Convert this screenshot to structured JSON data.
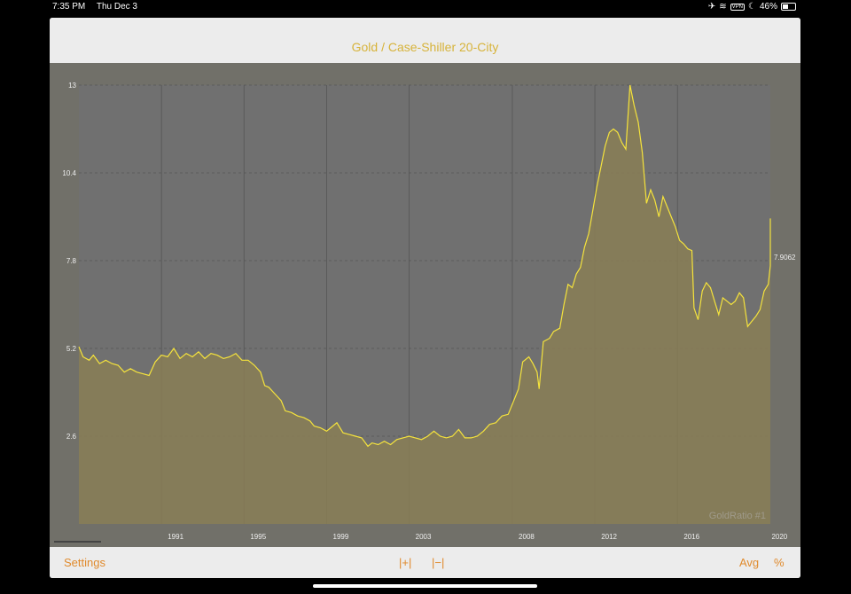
{
  "status": {
    "time": "7:35 PM",
    "date": "Thu Dec 3",
    "vpn": "VPN",
    "battery": "46%",
    "battery_level": 0.46
  },
  "title": "Gold / Case-Shiller 20-City",
  "watermark": "GoldRatio #1",
  "bottom": {
    "settings": "Settings",
    "zoom_in": "|+|",
    "zoom_out": "|−|",
    "avg": "Avg",
    "pct": "%"
  },
  "colors": {
    "line": "#f5e33c",
    "fill": "#887e55",
    "plot_bg": "#707070",
    "accent": "#e08a2c",
    "title": "#d7b33a"
  },
  "chart_data": {
    "type": "area",
    "title": "Gold / Case-Shiller 20-City",
    "xlim": [
      1987.0,
      2020.5
    ],
    "ylim": [
      0,
      13
    ],
    "y_ticks": [
      2.6,
      5.2,
      7.8,
      10.4,
      13
    ],
    "y_tick_labels": [
      "2.6",
      "5.2",
      "7.8",
      "10.4",
      "13"
    ],
    "x_tick_labels": [
      "1991",
      "1995",
      "1999",
      "2003",
      "2008",
      "2012",
      "2016",
      "2020"
    ],
    "x_ticks": [
      1991,
      1995,
      1999,
      2003,
      2008,
      2012,
      2016,
      2020
    ],
    "grid": true,
    "current_value_label": "7.9062",
    "series": [
      {
        "values": [
          [
            1987.0,
            5.25
          ],
          [
            1987.2,
            4.95
          ],
          [
            1987.5,
            4.85
          ],
          [
            1987.7,
            5.0
          ],
          [
            1988.0,
            4.75
          ],
          [
            1988.3,
            4.85
          ],
          [
            1988.6,
            4.75
          ],
          [
            1988.9,
            4.7
          ],
          [
            1989.2,
            4.5
          ],
          [
            1989.5,
            4.6
          ],
          [
            1989.8,
            4.5
          ],
          [
            1990.1,
            4.45
          ],
          [
            1990.4,
            4.4
          ],
          [
            1990.7,
            4.8
          ],
          [
            1991.0,
            5.0
          ],
          [
            1991.3,
            4.95
          ],
          [
            1991.6,
            5.2
          ],
          [
            1991.9,
            4.9
          ],
          [
            1992.2,
            5.05
          ],
          [
            1992.5,
            4.95
          ],
          [
            1992.8,
            5.1
          ],
          [
            1993.1,
            4.9
          ],
          [
            1993.4,
            5.05
          ],
          [
            1993.7,
            5.0
          ],
          [
            1994.0,
            4.9
          ],
          [
            1994.3,
            4.95
          ],
          [
            1994.6,
            5.05
          ],
          [
            1994.9,
            4.85
          ],
          [
            1995.2,
            4.85
          ],
          [
            1995.5,
            4.7
          ],
          [
            1995.8,
            4.5
          ],
          [
            1996.0,
            4.1
          ],
          [
            1996.2,
            4.05
          ],
          [
            1996.5,
            3.85
          ],
          [
            1996.8,
            3.65
          ],
          [
            1997.0,
            3.35
          ],
          [
            1997.3,
            3.3
          ],
          [
            1997.6,
            3.2
          ],
          [
            1997.9,
            3.15
          ],
          [
            1998.2,
            3.05
          ],
          [
            1998.4,
            2.9
          ],
          [
            1998.7,
            2.85
          ],
          [
            1999.0,
            2.75
          ],
          [
            1999.2,
            2.85
          ],
          [
            1999.5,
            3.0
          ],
          [
            1999.8,
            2.7
          ],
          [
            2000.1,
            2.65
          ],
          [
            2000.4,
            2.6
          ],
          [
            2000.7,
            2.55
          ],
          [
            2001.0,
            2.3
          ],
          [
            2001.2,
            2.4
          ],
          [
            2001.5,
            2.35
          ],
          [
            2001.8,
            2.45
          ],
          [
            2002.1,
            2.35
          ],
          [
            2002.4,
            2.5
          ],
          [
            2002.7,
            2.55
          ],
          [
            2003.0,
            2.6
          ],
          [
            2003.3,
            2.55
          ],
          [
            2003.6,
            2.5
          ],
          [
            2003.9,
            2.6
          ],
          [
            2004.2,
            2.75
          ],
          [
            2004.5,
            2.6
          ],
          [
            2004.8,
            2.55
          ],
          [
            2005.1,
            2.6
          ],
          [
            2005.4,
            2.8
          ],
          [
            2005.7,
            2.55
          ],
          [
            2006.0,
            2.55
          ],
          [
            2006.3,
            2.6
          ],
          [
            2006.6,
            2.75
          ],
          [
            2006.9,
            2.95
          ],
          [
            2007.2,
            3.0
          ],
          [
            2007.5,
            3.2
          ],
          [
            2007.8,
            3.25
          ],
          [
            2008.1,
            3.7
          ],
          [
            2008.3,
            4.0
          ],
          [
            2008.5,
            4.8
          ],
          [
            2008.8,
            4.95
          ],
          [
            2009.0,
            4.75
          ],
          [
            2009.2,
            4.5
          ],
          [
            2009.3,
            4.0
          ],
          [
            2009.5,
            5.4
          ],
          [
            2009.8,
            5.5
          ],
          [
            2010.0,
            5.7
          ],
          [
            2010.3,
            5.8
          ],
          [
            2010.5,
            6.5
          ],
          [
            2010.7,
            7.1
          ],
          [
            2010.9,
            7.0
          ],
          [
            2011.1,
            7.4
          ],
          [
            2011.3,
            7.6
          ],
          [
            2011.5,
            8.2
          ],
          [
            2011.7,
            8.6
          ],
          [
            2011.9,
            9.3
          ],
          [
            2012.1,
            10.0
          ],
          [
            2012.3,
            10.6
          ],
          [
            2012.5,
            11.2
          ],
          [
            2012.7,
            11.6
          ],
          [
            2012.9,
            11.7
          ],
          [
            2013.1,
            11.6
          ],
          [
            2013.3,
            11.3
          ],
          [
            2013.5,
            11.1
          ],
          [
            2013.7,
            13.0
          ],
          [
            2013.9,
            12.4
          ],
          [
            2014.1,
            11.9
          ],
          [
            2014.3,
            11.0
          ],
          [
            2014.5,
            9.5
          ],
          [
            2014.7,
            9.9
          ],
          [
            2014.9,
            9.6
          ],
          [
            2015.1,
            9.1
          ],
          [
            2015.3,
            9.7
          ],
          [
            2015.5,
            9.4
          ],
          [
            2015.7,
            9.1
          ],
          [
            2015.9,
            8.8
          ],
          [
            2016.1,
            8.4
          ],
          [
            2016.3,
            8.3
          ],
          [
            2016.5,
            8.15
          ],
          [
            2016.7,
            8.1
          ],
          [
            2016.8,
            6.4
          ],
          [
            2017.0,
            6.05
          ],
          [
            2017.2,
            6.9
          ],
          [
            2017.4,
            7.15
          ],
          [
            2017.6,
            7.0
          ],
          [
            2017.8,
            6.6
          ],
          [
            2018.0,
            6.2
          ],
          [
            2018.2,
            6.7
          ],
          [
            2018.4,
            6.6
          ],
          [
            2018.6,
            6.5
          ],
          [
            2018.8,
            6.6
          ],
          [
            2019.0,
            6.85
          ],
          [
            2019.2,
            6.7
          ],
          [
            2019.4,
            5.85
          ],
          [
            2019.6,
            6.0
          ],
          [
            2019.8,
            6.15
          ],
          [
            2020.0,
            6.35
          ],
          [
            2020.2,
            6.9
          ],
          [
            2020.4,
            7.1
          ],
          [
            2020.6,
            7.65
          ],
          [
            2020.8,
            8.1
          ],
          [
            2021.0,
            9.05
          ],
          [
            2021.2,
            8.3
          ],
          [
            2021.4,
            7.9
          ]
        ]
      }
    ]
  }
}
